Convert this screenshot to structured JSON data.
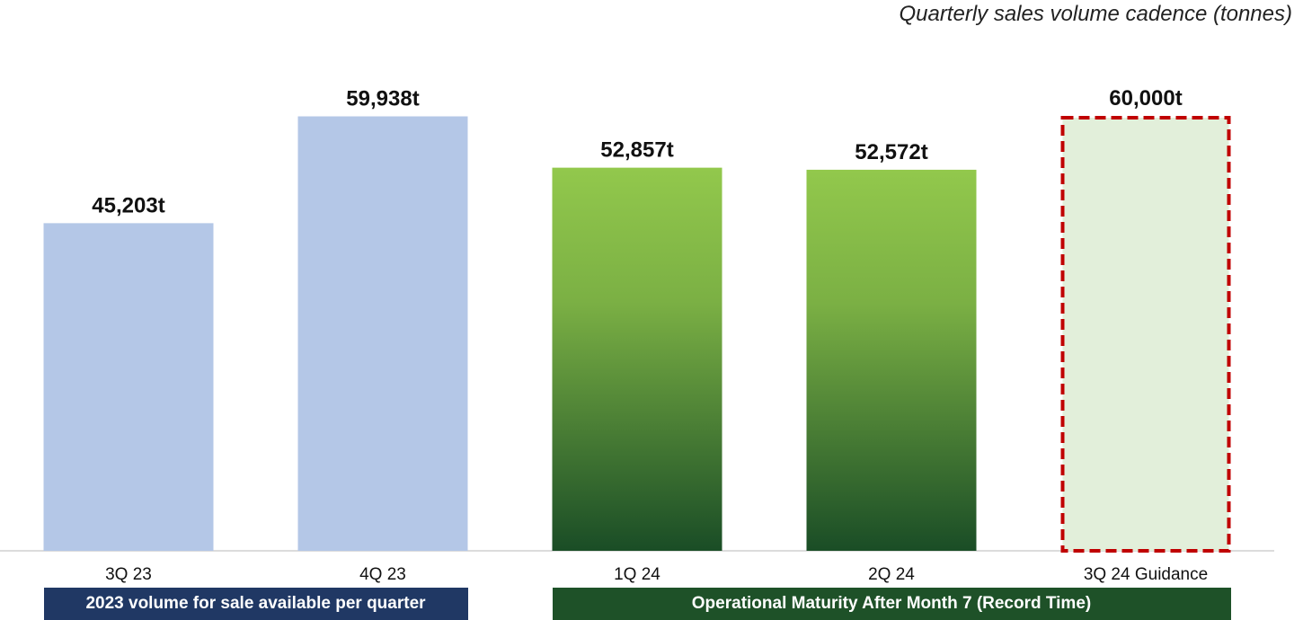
{
  "chart_data": {
    "type": "bar",
    "title": "Quarterly sales volume cadence (tonnes)",
    "categories": [
      "3Q 23",
      "4Q 23",
      "1Q 24",
      "2Q 24",
      "3Q 24 Guidance"
    ],
    "values": [
      45203,
      59938,
      52857,
      52572,
      60000
    ],
    "value_labels": [
      "45,203t",
      "59,938t",
      "52,857t",
      "52,572t",
      "60,000t"
    ],
    "styles": [
      "light-blue",
      "light-blue",
      "green-gradient",
      "green-gradient",
      "dashed-guidance"
    ],
    "ylim": [
      0,
      60000
    ],
    "xlabel": "",
    "ylabel": "",
    "groups": [
      {
        "label": "2023 volume for sale available per quarter",
        "categories": [
          "3Q 23",
          "4Q 23"
        ]
      },
      {
        "label": "Operational Maturity After Month 7 (Record Time)",
        "categories": [
          "1Q 24",
          "2Q 24",
          "3Q 24 Guidance"
        ]
      }
    ]
  },
  "colors": {
    "light_blue": "#b4c7e7",
    "green_top": "#92c84c",
    "green_bottom": "#1a4d26",
    "guidance_fill": "#e2efda",
    "guidance_border": "#c00000",
    "navy_band": "#203864",
    "green_band": "#1e5128",
    "axis": "#d0d0d0"
  }
}
